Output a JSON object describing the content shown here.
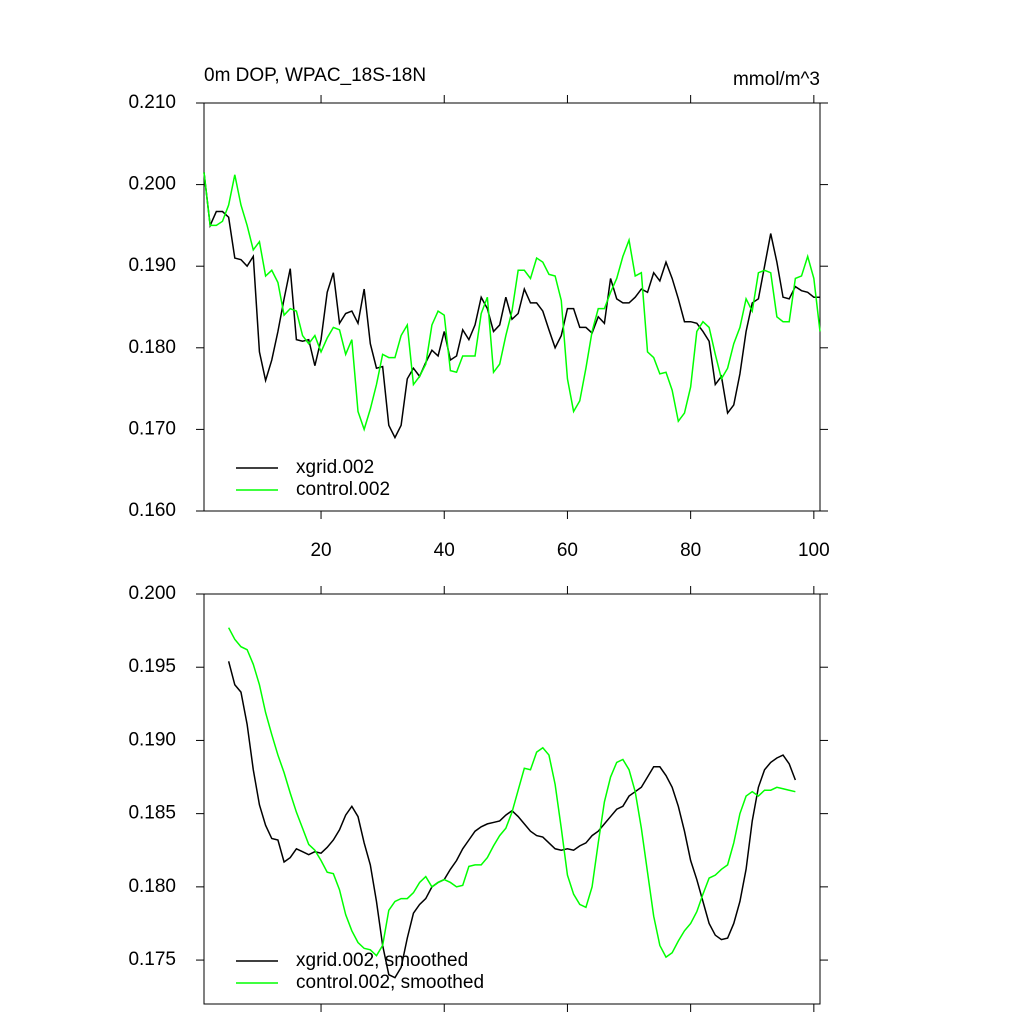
{
  "chart_data": [
    {
      "type": "line",
      "title": "0m DOP, WPAC_18S-18N",
      "subtitle": "mmol/m^3",
      "x": [
        1,
        2,
        3,
        4,
        5,
        6,
        7,
        8,
        9,
        10,
        11,
        12,
        13,
        14,
        15,
        16,
        17,
        18,
        19,
        20,
        21,
        22,
        23,
        24,
        25,
        26,
        27,
        28,
        29,
        30,
        31,
        32,
        33,
        34,
        35,
        36,
        37,
        38,
        39,
        40,
        41,
        42,
        43,
        44,
        45,
        46,
        47,
        48,
        49,
        50,
        51,
        52,
        53,
        54,
        55,
        56,
        57,
        58,
        59,
        60,
        61,
        62,
        63,
        64,
        65,
        66,
        67,
        68,
        69,
        70,
        71,
        72,
        73,
        74,
        75,
        76,
        77,
        78,
        79,
        80,
        81,
        82,
        83,
        84,
        85,
        86,
        87,
        88,
        89,
        90,
        91,
        92,
        93,
        94,
        95,
        96,
        97,
        98,
        99,
        100,
        101
      ],
      "series": [
        {
          "name": "xgrid.002",
          "color": "#000000",
          "values": [
            0.2015,
            0.195,
            0.1967,
            0.1967,
            0.196,
            0.191,
            0.1908,
            0.19,
            0.1912,
            0.1795,
            0.176,
            0.1785,
            0.182,
            0.186,
            0.1897,
            0.181,
            0.1808,
            0.181,
            0.1778,
            0.181,
            0.1868,
            0.1892,
            0.183,
            0.1842,
            0.1845,
            0.183,
            0.1872,
            0.1805,
            0.1775,
            0.1777,
            0.1705,
            0.169,
            0.1705,
            0.1762,
            0.1775,
            0.1765,
            0.1782,
            0.1797,
            0.179,
            0.182,
            0.1785,
            0.179,
            0.1822,
            0.181,
            0.1828,
            0.1862,
            0.1848,
            0.182,
            0.1828,
            0.1862,
            0.1835,
            0.1842,
            0.1872,
            0.1855,
            0.1855,
            0.1845,
            0.1822,
            0.18,
            0.1815,
            0.1848,
            0.1848,
            0.1825,
            0.1825,
            0.1818,
            0.1838,
            0.183,
            0.1885,
            0.186,
            0.1855,
            0.1855,
            0.1862,
            0.1872,
            0.1868,
            0.1892,
            0.1882,
            0.1905,
            0.1885,
            0.186,
            0.1832,
            0.1832,
            0.183,
            0.182,
            0.1808,
            0.1755,
            0.1765,
            0.172,
            0.173,
            0.1768,
            0.182,
            0.1855,
            0.186,
            0.19,
            0.194,
            0.1905,
            0.1862,
            0.186,
            0.1875,
            0.187,
            0.1868,
            0.1862,
            0.1862
          ]
        },
        {
          "name": "control.002",
          "color": "#00ff00",
          "values": [
            0.2015,
            0.195,
            0.195,
            0.1955,
            0.1975,
            0.2012,
            0.1975,
            0.195,
            0.192,
            0.193,
            0.1888,
            0.1895,
            0.188,
            0.184,
            0.1848,
            0.1845,
            0.1815,
            0.1805,
            0.1815,
            0.1795,
            0.1812,
            0.1825,
            0.1822,
            0.1792,
            0.181,
            0.1722,
            0.17,
            0.1725,
            0.1755,
            0.1792,
            0.1788,
            0.1788,
            0.1815,
            0.1828,
            0.1755,
            0.1765,
            0.178,
            0.1828,
            0.1845,
            0.184,
            0.1772,
            0.177,
            0.179,
            0.179,
            0.179,
            0.1842,
            0.1862,
            0.177,
            0.178,
            0.1815,
            0.1845,
            0.1895,
            0.1895,
            0.1885,
            0.191,
            0.1905,
            0.189,
            0.1888,
            0.1858,
            0.1762,
            0.1722,
            0.1735,
            0.1775,
            0.182,
            0.1848,
            0.1848,
            0.1868,
            0.1885,
            0.1912,
            0.1932,
            0.1888,
            0.1892,
            0.1795,
            0.1788,
            0.1768,
            0.177,
            0.1748,
            0.171,
            0.172,
            0.1752,
            0.182,
            0.1832,
            0.1825,
            0.1792,
            0.1762,
            0.1775,
            0.1805,
            0.1825,
            0.186,
            0.1845,
            0.1892,
            0.1895,
            0.1892,
            0.1838,
            0.1832,
            0.1832,
            0.1885,
            0.1888,
            0.1912,
            0.1885,
            0.182
          ]
        }
      ],
      "xlim": [
        1,
        101
      ],
      "xticks": [
        20,
        40,
        60,
        80,
        100
      ],
      "xtick_labels": true,
      "ylim": [
        0.16,
        0.21
      ],
      "yticks": [
        {
          "value": 0.16,
          "label": "0.160"
        },
        {
          "value": 0.17,
          "label": "0.170"
        },
        {
          "value": 0.18,
          "label": "0.180"
        },
        {
          "value": 0.19,
          "label": "0.190"
        },
        {
          "value": 0.2,
          "label": "0.200"
        },
        {
          "value": 0.21,
          "label": "0.210"
        }
      ],
      "grid": false,
      "legend": "lower left"
    },
    {
      "type": "line",
      "x": [
        5,
        6,
        7,
        8,
        9,
        10,
        11,
        12,
        13,
        14,
        15,
        16,
        17,
        18,
        19,
        20,
        21,
        22,
        23,
        24,
        25,
        26,
        27,
        28,
        29,
        30,
        31,
        32,
        33,
        34,
        35,
        36,
        37,
        38,
        39,
        40,
        41,
        42,
        43,
        44,
        45,
        46,
        47,
        48,
        49,
        50,
        51,
        52,
        53,
        54,
        55,
        56,
        57,
        58,
        59,
        60,
        61,
        62,
        63,
        64,
        65,
        66,
        67,
        68,
        69,
        70,
        71,
        72,
        73,
        74,
        75,
        76,
        77,
        78,
        79,
        80,
        81,
        82,
        83,
        84,
        85,
        86,
        87,
        88,
        89,
        90,
        91,
        92,
        93,
        94,
        95,
        96,
        97
      ],
      "series": [
        {
          "name": "xgrid.002, smoothed",
          "color": "#000000",
          "values": [
            0.1954,
            0.1938,
            0.1933,
            0.1911,
            0.188,
            0.1856,
            0.1842,
            0.1833,
            0.1832,
            0.1817,
            0.182,
            0.1826,
            0.1824,
            0.1822,
            0.1824,
            0.1823,
            0.1827,
            0.1832,
            0.1839,
            0.1849,
            0.1855,
            0.1848,
            0.183,
            0.1815,
            0.179,
            0.176,
            0.174,
            0.1738,
            0.1745,
            0.1765,
            0.1782,
            0.1788,
            0.1792,
            0.18,
            0.1803,
            0.1805,
            0.1812,
            0.1818,
            0.1826,
            0.1832,
            0.1838,
            0.1841,
            0.1843,
            0.1844,
            0.1845,
            0.1849,
            0.1852,
            0.1848,
            0.1843,
            0.1838,
            0.1835,
            0.1834,
            0.183,
            0.1826,
            0.1825,
            0.1826,
            0.1825,
            0.1828,
            0.183,
            0.1835,
            0.1838,
            0.1843,
            0.1848,
            0.1853,
            0.1855,
            0.1862,
            0.1865,
            0.1868,
            0.1875,
            0.1882,
            0.1882,
            0.1876,
            0.1868,
            0.1855,
            0.1838,
            0.1818,
            0.1805,
            0.179,
            0.1775,
            0.1767,
            0.1764,
            0.1765,
            0.1775,
            0.179,
            0.1812,
            0.1845,
            0.1868,
            0.188,
            0.1885,
            0.1888,
            0.189,
            0.1884,
            0.1873
          ]
        },
        {
          "name": "control.002, smoothed",
          "color": "#00ff00",
          "values": [
            0.1977,
            0.1969,
            0.1964,
            0.1962,
            0.1952,
            0.1938,
            0.1919,
            0.1904,
            0.189,
            0.1878,
            0.1864,
            0.1851,
            0.184,
            0.1829,
            0.1825,
            0.1818,
            0.181,
            0.1809,
            0.1798,
            0.1781,
            0.177,
            0.1762,
            0.1758,
            0.1757,
            0.1753,
            0.176,
            0.1784,
            0.179,
            0.1792,
            0.1792,
            0.1796,
            0.1803,
            0.1807,
            0.18,
            0.1803,
            0.1805,
            0.1803,
            0.18,
            0.1801,
            0.1814,
            0.1815,
            0.1815,
            0.182,
            0.1828,
            0.1835,
            0.184,
            0.1851,
            0.1866,
            0.1881,
            0.188,
            0.1892,
            0.1895,
            0.189,
            0.187,
            0.184,
            0.1808,
            0.1795,
            0.1788,
            0.1786,
            0.18,
            0.183,
            0.1858,
            0.1875,
            0.1885,
            0.1887,
            0.188,
            0.1865,
            0.184,
            0.181,
            0.178,
            0.176,
            0.1752,
            0.1755,
            0.1763,
            0.177,
            0.1775,
            0.1783,
            0.1795,
            0.1806,
            0.1808,
            0.1812,
            0.1815,
            0.183,
            0.185,
            0.1862,
            0.1865,
            0.1862,
            0.1866,
            0.1866,
            0.1868,
            0.1867,
            0.1866,
            0.1865
          ]
        }
      ],
      "xlim": [
        1,
        101
      ],
      "xticks": [
        20,
        40,
        60,
        80,
        100
      ],
      "xtick_labels": false,
      "ylim": [
        0.172,
        0.2
      ],
      "yticks": [
        0.175,
        {
          "value": 0.18,
          "label": "0.180"
        },
        0.185,
        {
          "value": 0.19,
          "label": "0.190"
        },
        0.195,
        {
          "value": 0.2,
          "label": "0.200"
        }
      ],
      "grid": false,
      "legend": "lower left"
    }
  ]
}
